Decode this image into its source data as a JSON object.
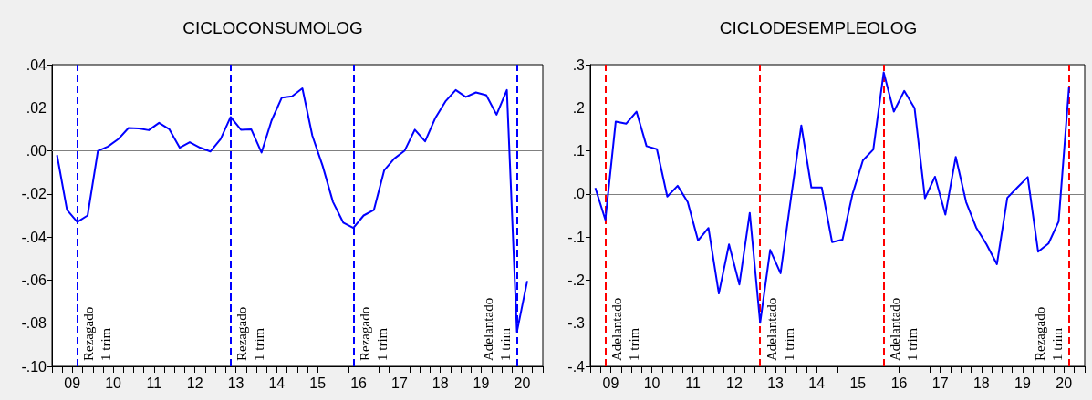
{
  "chart_data": [
    {
      "type": "line",
      "title": "CICLOCONSUMOLOG",
      "line_style": "solid",
      "x": [
        "2009-02-15",
        "2009-05-15",
        "2009-08-15",
        "2009-11-15",
        "2010-02-15",
        "2010-05-15",
        "2010-08-15",
        "2010-11-15",
        "2011-02-15",
        "2011-05-15",
        "2011-08-15",
        "2011-11-15",
        "2012-02-15",
        "2012-05-15",
        "2012-08-15",
        "2012-11-15",
        "2013-02-15",
        "2013-05-15",
        "2013-08-15",
        "2013-11-15",
        "2014-02-15",
        "2014-05-15",
        "2014-08-15",
        "2014-11-15",
        "2015-02-15",
        "2015-05-15",
        "2015-08-15",
        "2015-11-15",
        "2016-02-15",
        "2016-05-15",
        "2016-08-15",
        "2016-11-15",
        "2017-02-15",
        "2017-05-15",
        "2017-08-15",
        "2017-11-15",
        "2018-02-15",
        "2018-05-15",
        "2018-08-15",
        "2018-11-15",
        "2019-02-15",
        "2019-05-15",
        "2019-08-15",
        "2019-11-15",
        "2020-02-15",
        "2020-05-15",
        "2020-08-15"
      ],
      "series": [
        {
          "color": "#0000ff",
          "values": [
            -0.002,
            -0.0274,
            -0.033,
            -0.03,
            0.0,
            0.002,
            0.0054,
            0.0106,
            0.0104,
            0.0096,
            0.013,
            0.01,
            0.0015,
            0.004,
            0.0015,
            -0.0003,
            0.0055,
            0.0157,
            0.0098,
            0.01,
            -0.0008,
            0.014,
            0.0247,
            0.0253,
            0.029,
            0.007,
            -0.007,
            -0.0237,
            -0.0333,
            -0.0358,
            -0.03,
            -0.0274,
            -0.009,
            -0.0036,
            0.0,
            0.0098,
            0.0044,
            0.015,
            0.0229,
            0.0282,
            0.025,
            0.0271,
            0.0258,
            0.0168,
            0.0282,
            -0.084,
            -0.0604
          ]
        }
      ],
      "xlim": [
        "2009-01",
        "2021-01"
      ],
      "xticks": [
        {
          "value": "2009-01",
          "label": null
        },
        {
          "value": "2009-04",
          "label": null
        },
        {
          "value": "2009-07",
          "label": "09"
        },
        {
          "value": "2009-10",
          "label": null
        },
        {
          "value": "2010-01",
          "label": null
        },
        {
          "value": "2010-04",
          "label": null
        },
        {
          "value": "2010-07",
          "label": "10"
        },
        {
          "value": "2010-10",
          "label": null
        },
        {
          "value": "2011-01",
          "label": null
        },
        {
          "value": "2011-04",
          "label": null
        },
        {
          "value": "2011-07",
          "label": "11"
        },
        {
          "value": "2011-10",
          "label": null
        },
        {
          "value": "2012-01",
          "label": null
        },
        {
          "value": "2012-04",
          "label": null
        },
        {
          "value": "2012-07",
          "label": "12"
        },
        {
          "value": "2012-10",
          "label": null
        },
        {
          "value": "2013-01",
          "label": null
        },
        {
          "value": "2013-04",
          "label": null
        },
        {
          "value": "2013-07",
          "label": "13"
        },
        {
          "value": "2013-10",
          "label": null
        },
        {
          "value": "2014-01",
          "label": null
        },
        {
          "value": "2014-04",
          "label": null
        },
        {
          "value": "2014-07",
          "label": "14"
        },
        {
          "value": "2014-10",
          "label": null
        },
        {
          "value": "2015-01",
          "label": null
        },
        {
          "value": "2015-04",
          "label": null
        },
        {
          "value": "2015-07",
          "label": "15"
        },
        {
          "value": "2015-10",
          "label": null
        },
        {
          "value": "2016-01",
          "label": null
        },
        {
          "value": "2016-04",
          "label": null
        },
        {
          "value": "2016-07",
          "label": "16"
        },
        {
          "value": "2016-10",
          "label": null
        },
        {
          "value": "2017-01",
          "label": null
        },
        {
          "value": "2017-04",
          "label": null
        },
        {
          "value": "2017-07",
          "label": "17"
        },
        {
          "value": "2017-10",
          "label": null
        },
        {
          "value": "2018-01",
          "label": null
        },
        {
          "value": "2018-04",
          "label": null
        },
        {
          "value": "2018-07",
          "label": "18"
        },
        {
          "value": "2018-10",
          "label": null
        },
        {
          "value": "2019-01",
          "label": null
        },
        {
          "value": "2019-04",
          "label": null
        },
        {
          "value": "2019-07",
          "label": "19"
        },
        {
          "value": "2019-10",
          "label": null
        },
        {
          "value": "2020-01",
          "label": null
        },
        {
          "value": "2020-04",
          "label": null
        },
        {
          "value": "2020-07",
          "label": "20"
        },
        {
          "value": "2020-10",
          "label": null
        },
        {
          "value": "2021-01",
          "label": null
        }
      ],
      "ylim": [
        -0.1,
        0.04
      ],
      "yticks": [
        {
          "value": 0.04,
          "label": ".04"
        },
        {
          "value": 0.02,
          "label": ".02"
        },
        {
          "value": 0,
          "label": ".00"
        },
        {
          "value": -0.02,
          "label": "-.02"
        },
        {
          "value": -0.04,
          "label": "-.04"
        },
        {
          "value": -0.06,
          "label": "-.06"
        },
        {
          "value": -0.08,
          "label": "-.08"
        },
        {
          "value": -0.1,
          "label": "-.10"
        }
      ],
      "ref_lines": [
        {
          "axis": "y",
          "value": 0,
          "label": null,
          "color": "#808080",
          "line_style": "solid"
        },
        {
          "axis": "x",
          "value": "2009-08-15",
          "label": "Rezagado\n1 trim",
          "color": "#0000ff",
          "line_style": "dashed"
        },
        {
          "axis": "x",
          "value": "2013-05-15",
          "label": "Rezagado\n1 trim",
          "color": "#0000ff",
          "line_style": "dashed"
        },
        {
          "axis": "x",
          "value": "2016-05-15",
          "label": "Rezagado\n1 trim",
          "color": "#0000ff",
          "line_style": "dashed"
        },
        {
          "axis": "x",
          "value": "2020-05-15",
          "label": "Adelantado\n1 trim",
          "color": "#0000ff",
          "line_style": "dashed"
        }
      ]
    },
    {
      "type": "line",
      "title": "CICLODESEMPLEOLOG",
      "line_style": "solid",
      "x": [
        "2009-02-15",
        "2009-05-15",
        "2009-08-15",
        "2009-11-15",
        "2010-02-15",
        "2010-05-15",
        "2010-08-15",
        "2010-11-15",
        "2011-02-15",
        "2011-05-15",
        "2011-08-15",
        "2011-11-15",
        "2012-02-15",
        "2012-05-15",
        "2012-08-15",
        "2012-11-15",
        "2013-02-15",
        "2013-05-15",
        "2013-08-15",
        "2013-11-15",
        "2014-02-15",
        "2014-05-15",
        "2014-08-15",
        "2014-11-15",
        "2015-02-15",
        "2015-05-15",
        "2015-08-15",
        "2015-11-15",
        "2016-02-15",
        "2016-05-15",
        "2016-08-15",
        "2016-11-15",
        "2017-02-15",
        "2017-05-15",
        "2017-08-15",
        "2017-11-15",
        "2018-02-15",
        "2018-05-15",
        "2018-08-15",
        "2018-11-15",
        "2019-02-15",
        "2019-05-15",
        "2019-08-15",
        "2019-11-15",
        "2020-02-15",
        "2020-05-15",
        "2020-08-15"
      ],
      "series": [
        {
          "color": "#0000ff",
          "values": [
            0.014,
            -0.06,
            0.168,
            0.163,
            0.191,
            0.111,
            0.104,
            -0.006,
            0.019,
            -0.019,
            -0.108,
            -0.079,
            -0.231,
            -0.117,
            -0.21,
            -0.044,
            -0.299,
            -0.13,
            -0.184,
            -0.01,
            0.159,
            0.015,
            0.015,
            -0.112,
            -0.106,
            0.0,
            0.078,
            0.103,
            0.282,
            0.191,
            0.239,
            0.199,
            -0.01,
            0.04,
            -0.048,
            0.086,
            -0.019,
            -0.078,
            -0.117,
            -0.163,
            -0.009,
            0.015,
            0.039,
            -0.134,
            -0.115,
            -0.064,
            0.248
          ]
        }
      ],
      "xlim": [
        "2009-01",
        "2021-01"
      ],
      "xticks": [
        {
          "value": "2009-01",
          "label": null
        },
        {
          "value": "2009-04",
          "label": null
        },
        {
          "value": "2009-07",
          "label": "09"
        },
        {
          "value": "2009-10",
          "label": null
        },
        {
          "value": "2010-01",
          "label": null
        },
        {
          "value": "2010-04",
          "label": null
        },
        {
          "value": "2010-07",
          "label": "10"
        },
        {
          "value": "2010-10",
          "label": null
        },
        {
          "value": "2011-01",
          "label": null
        },
        {
          "value": "2011-04",
          "label": null
        },
        {
          "value": "2011-07",
          "label": "11"
        },
        {
          "value": "2011-10",
          "label": null
        },
        {
          "value": "2012-01",
          "label": null
        },
        {
          "value": "2012-04",
          "label": null
        },
        {
          "value": "2012-07",
          "label": "12"
        },
        {
          "value": "2012-10",
          "label": null
        },
        {
          "value": "2013-01",
          "label": null
        },
        {
          "value": "2013-04",
          "label": null
        },
        {
          "value": "2013-07",
          "label": "13"
        },
        {
          "value": "2013-10",
          "label": null
        },
        {
          "value": "2014-01",
          "label": null
        },
        {
          "value": "2014-04",
          "label": null
        },
        {
          "value": "2014-07",
          "label": "14"
        },
        {
          "value": "2014-10",
          "label": null
        },
        {
          "value": "2015-01",
          "label": null
        },
        {
          "value": "2015-04",
          "label": null
        },
        {
          "value": "2015-07",
          "label": "15"
        },
        {
          "value": "2015-10",
          "label": null
        },
        {
          "value": "2016-01",
          "label": null
        },
        {
          "value": "2016-04",
          "label": null
        },
        {
          "value": "2016-07",
          "label": "16"
        },
        {
          "value": "2016-10",
          "label": null
        },
        {
          "value": "2017-01",
          "label": null
        },
        {
          "value": "2017-04",
          "label": null
        },
        {
          "value": "2017-07",
          "label": "17"
        },
        {
          "value": "2017-10",
          "label": null
        },
        {
          "value": "2018-01",
          "label": null
        },
        {
          "value": "2018-04",
          "label": null
        },
        {
          "value": "2018-07",
          "label": "18"
        },
        {
          "value": "2018-10",
          "label": null
        },
        {
          "value": "2019-01",
          "label": null
        },
        {
          "value": "2019-04",
          "label": null
        },
        {
          "value": "2019-07",
          "label": "19"
        },
        {
          "value": "2019-10",
          "label": null
        },
        {
          "value": "2020-01",
          "label": null
        },
        {
          "value": "2020-04",
          "label": null
        },
        {
          "value": "2020-07",
          "label": "20"
        },
        {
          "value": "2020-10",
          "label": null
        },
        {
          "value": "2021-01",
          "label": null
        }
      ],
      "ylim": [
        -0.4,
        0.3
      ],
      "yticks": [
        {
          "value": 0.3,
          "label": ".3"
        },
        {
          "value": 0.2,
          "label": ".2"
        },
        {
          "value": 0.1,
          "label": ".1"
        },
        {
          "value": 0,
          "label": ".0"
        },
        {
          "value": -0.1,
          "label": "-.1"
        },
        {
          "value": -0.2,
          "label": "-.2"
        },
        {
          "value": -0.3,
          "label": "-.3"
        },
        {
          "value": -0.4,
          "label": "-.4"
        }
      ],
      "ref_lines": [
        {
          "axis": "y",
          "value": 0,
          "label": null,
          "color": "#808080",
          "line_style": "solid"
        },
        {
          "axis": "x",
          "value": "2009-05-15",
          "label": "Adelantado\n1 trim",
          "color": "#ff0000",
          "line_style": "dashed"
        },
        {
          "axis": "x",
          "value": "2013-02-15",
          "label": "Adelantado\n1 trim",
          "color": "#ff0000",
          "line_style": "dashed"
        },
        {
          "axis": "x",
          "value": "2016-02-15",
          "label": "Adelantado\n1 trim",
          "color": "#ff0000",
          "line_style": "dashed"
        },
        {
          "axis": "x",
          "value": "2020-08-15",
          "label": "Rezagado\n1 trim",
          "color": "#ff0000",
          "line_style": "dashed"
        }
      ]
    }
  ]
}
